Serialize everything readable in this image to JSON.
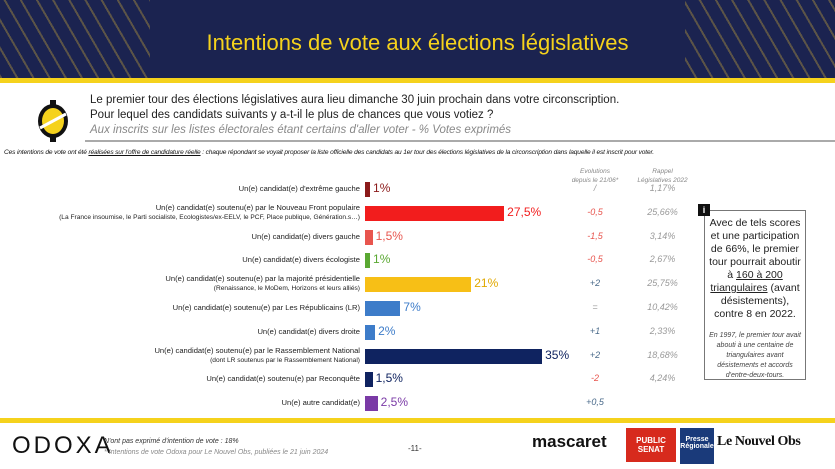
{
  "header": {
    "title": "Intentions de vote aux élections législatives"
  },
  "question": {
    "line1": "Le premier tour des élections législatives aura lieu dimanche 30 juin prochain dans votre circonscription.",
    "line2": "Pour lequel des candidats suivants y a-t-il le plus de chances que vous votiez ?",
    "sub": "Aux inscrits sur les listes électorales étant certains d'aller voter - % Votes exprimés"
  },
  "note": {
    "pre": "Ces intentions de vote ont été ",
    "underlined": "réalisées sur l'offre de candidature réelle",
    "post": " : chaque répondant se voyait proposer la liste officielle des candidats au 1er tour des élections législatives de la circonscription dans laquelle il est inscrit pour voter."
  },
  "columns": {
    "evolutions_l1": "Evolutions",
    "evolutions_l2": "depuis le 21/06*",
    "rappel_l1": "Rappel",
    "rappel_l2": "Législatives 2022"
  },
  "chart_data": {
    "type": "bar",
    "orientation": "horizontal",
    "unit": "%",
    "categories": [
      {
        "label": "Un(e) candidat(e) d'extrême gauche",
        "sub": ""
      },
      {
        "label": "Un(e) candidat(e) soutenu(e) par le Nouveau Front populaire",
        "sub": "(La France insoumise, le Parti socialiste, Ecologistes/ex-EELV, le PCF, Place publique, Génération.s…)"
      },
      {
        "label": "Un(e) candidat(e) divers gauche",
        "sub": ""
      },
      {
        "label": "Un(e) candidat(e) divers écologiste",
        "sub": ""
      },
      {
        "label": "Un(e) candidat(e) soutenu(e) par la majorité présidentielle",
        "sub": "(Renaissance, le MoDem, Horizons et leurs alliés)"
      },
      {
        "label": "Un(e) candidat(e) soutenu(e) par Les Républicains (LR)",
        "sub": ""
      },
      {
        "label": "Un(e) candidat(e) divers droite",
        "sub": ""
      },
      {
        "label": "Un(e) candidat(e)  soutenu(e) par le Rassemblement National",
        "sub": "(dont LR soutenus par le Rassemblement National)"
      },
      {
        "label": "Un(e) candidat(e) soutenu(e) par Reconquête",
        "sub": ""
      },
      {
        "label": "Un(e) autre candidat(e)",
        "sub": ""
      }
    ],
    "values": [
      1,
      27.5,
      1.5,
      1,
      21,
      7,
      2,
      35,
      1.5,
      2.5
    ],
    "value_labels": [
      "1%",
      "27,5%",
      "1,5%",
      "1%",
      "21%",
      "7%",
      "2%",
      "35%",
      "1,5%",
      "2,5%"
    ],
    "colors": [
      "#8b1a1a",
      "#f21d1d",
      "#e8554e",
      "#5aa832",
      "#f7bf16",
      "#3d7cc9",
      "#3d7cc9",
      "#0f2360",
      "#0f2360",
      "#7a3aa6"
    ],
    "evolutions": [
      "/",
      "-0,5",
      "-1,5",
      "-0,5",
      "+2",
      "=",
      "+1",
      "+2",
      "-2",
      "+0,5"
    ],
    "rappel_2022": [
      "1,17%",
      "25,66%",
      "3,14%",
      "2,67%",
      "25,75%",
      "10,42%",
      "2,33%",
      "18,68%",
      "4,24%",
      ""
    ]
  },
  "info": {
    "badge": "i",
    "l1": "Avec de tels scores et une participation de 66%, le premier tour pourrait aboutir à ",
    "u": "160 à 200 triangulaires",
    "l2": " (avant désistements), contre 8 en 2022.",
    "small": "En 1997, le premier tour avait abouti à une centaine de triangulaires avant désistements et accords d'entre-deux-tours."
  },
  "footer": {
    "logo": "ODOXA",
    "note1": "N'ont pas exprimé d'intention de vote : 18%",
    "note2": "* Intentions de vote Odoxa pour Le Nouvel Obs, publiées le 21 juin 2024",
    "page": "-11-",
    "brands": [
      "mascaret",
      "PUBLIC SENAT",
      "Presse Régionale",
      "Le Nouvel Obs"
    ]
  },
  "colors": {
    "navy": "#1b2350",
    "yellow": "#f5d21c",
    "negative": "#e8554e",
    "positive": "#4a6a8a"
  }
}
